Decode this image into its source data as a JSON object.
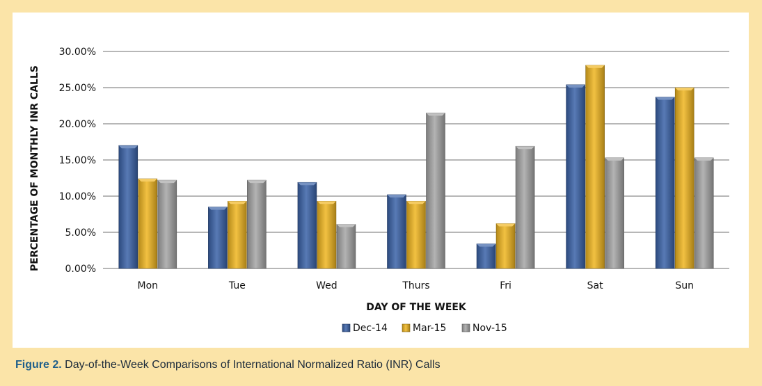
{
  "caption": {
    "label": "Figure 2.",
    "text": " Day-of-the-Week Comparisons of International Normalized Ratio (INR) Calls"
  },
  "chart_data": {
    "type": "bar",
    "categories": [
      "Mon",
      "Tue",
      "Wed",
      "Thurs",
      "Fri",
      "Sat",
      "Sun"
    ],
    "series": [
      {
        "name": "Dec-14",
        "color": "#3b63a8",
        "values": [
          17.0,
          8.5,
          11.9,
          10.2,
          3.4,
          25.4,
          23.7
        ]
      },
      {
        "name": "Mar-15",
        "color": "#f0b621",
        "values": [
          12.4,
          9.3,
          9.3,
          9.3,
          6.2,
          28.1,
          25.0
        ]
      },
      {
        "name": "Nov-15",
        "color": "#a6a6a6",
        "values": [
          12.2,
          12.2,
          6.1,
          21.5,
          16.9,
          15.3,
          15.3
        ]
      }
    ],
    "xlabel": "DAY OF THE WEEK",
    "ylabel": "PERCENTAGE OF MONTHLY INR CALLS",
    "ylim": [
      0,
      30
    ],
    "yticks": [
      0,
      5,
      10,
      15,
      20,
      25,
      30
    ],
    "ytick_labels": [
      "0.00%",
      "5.00%",
      "10.00%",
      "15.00%",
      "20.00%",
      "25.00%",
      "30.00%"
    ],
    "grid": true,
    "legend_position": "bottom-center"
  }
}
